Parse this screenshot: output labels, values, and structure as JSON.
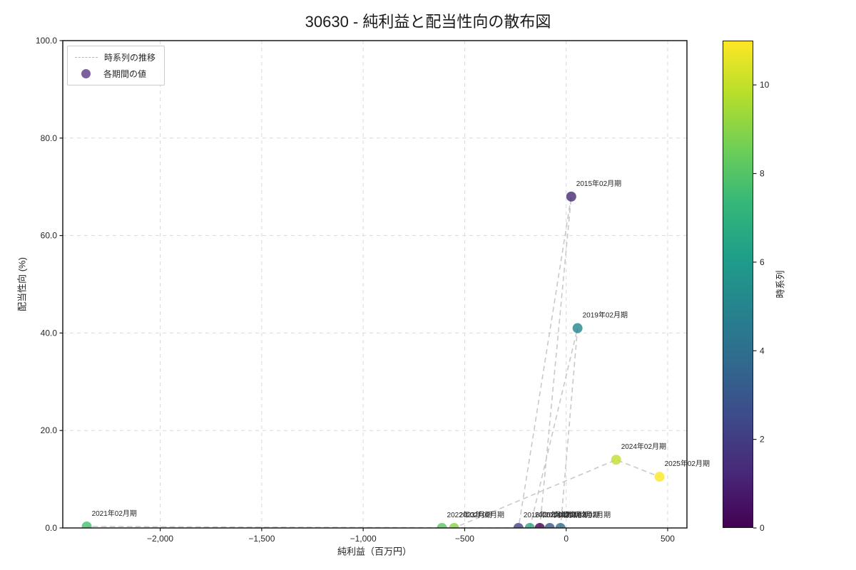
{
  "chart_data": {
    "type": "scatter",
    "title": "30630 - 純利益と配当性向の散布図",
    "xlabel": "純利益（百万円）",
    "ylabel": "配当性向 (%)",
    "xlim": [
      -2480,
      595
    ],
    "ylim": [
      0,
      100
    ],
    "grid": true,
    "x_ticks": {
      "values": [
        -2000,
        -1500,
        -1000,
        -500,
        0,
        500
      ],
      "labels": [
        "−2,000",
        "−1,500",
        "−1,000",
        "−500",
        "0",
        "500"
      ]
    },
    "y_ticks": {
      "values": [
        0,
        20,
        40,
        60,
        80,
        100
      ],
      "labels": [
        "0.0",
        "20.0",
        "40.0",
        "60.0",
        "80.0",
        "100.0"
      ]
    },
    "legend": {
      "position": "upper left",
      "items": [
        {
          "type": "dashed-line",
          "label": "時系列の推移"
        },
        {
          "type": "marker",
          "label": "各期間の値"
        }
      ]
    },
    "points": [
      {
        "label": "2014年02月期",
        "t": 0,
        "x": -130,
        "y": 0.0,
        "color": "#440154"
      },
      {
        "label": "2015年02月期",
        "t": 1,
        "x": 25,
        "y": 68.0,
        "color": "#462a75"
      },
      {
        "label": "2016年02月期",
        "t": 2,
        "x": -235,
        "y": 0.0,
        "color": "#414388"
      },
      {
        "label": "2017年02月期",
        "t": 3,
        "x": -81,
        "y": 0.0,
        "color": "#38588c"
      },
      {
        "label": "2018年02月期",
        "t": 4,
        "x": -28,
        "y": 0.0,
        "color": "#2d6e8e"
      },
      {
        "label": "2019年02月期",
        "t": 5,
        "x": 56,
        "y": 41.0,
        "color": "#25858d"
      },
      {
        "label": "2020年02月期",
        "t": 6,
        "x": -179,
        "y": 0.0,
        "color": "#2ea282"
      },
      {
        "label": "2021年02月期",
        "t": 7,
        "x": -2362,
        "y": 0.3,
        "color": "#46c06f"
      },
      {
        "label": "2022年02月期",
        "t": 8,
        "x": -612,
        "y": 0.0,
        "color": "#59c764"
      },
      {
        "label": "2023年02月期",
        "t": 9,
        "x": -552,
        "y": 0.0,
        "color": "#87d248"
      },
      {
        "label": "2024年02月期",
        "t": 10,
        "x": 246,
        "y": 14.0,
        "color": "#bfde30"
      },
      {
        "label": "2025年02月期",
        "t": 11,
        "x": 460,
        "y": 10.5,
        "color": "#fde725"
      }
    ],
    "trajectory": {
      "color": "#c3c3c3",
      "dash": "7 5",
      "width": 1.6
    },
    "marker": {
      "radius": 7,
      "alpha": 0.8,
      "legend_color": "#593a85"
    },
    "colorbar": {
      "label": "時系列",
      "min": 0,
      "max": 11,
      "ticks": [
        0,
        2,
        4,
        6,
        8,
        10
      ],
      "gradient": [
        "#440154",
        "#482878",
        "#3e4989",
        "#31688e",
        "#26828e",
        "#1f9e89",
        "#35b779",
        "#6ece58",
        "#b5de2b",
        "#fde725"
      ]
    },
    "grid_color": "#d9d9d9",
    "spine_color": "#1a1a1a",
    "tick_label_color": "#262626",
    "annotation_color": "#262626"
  }
}
